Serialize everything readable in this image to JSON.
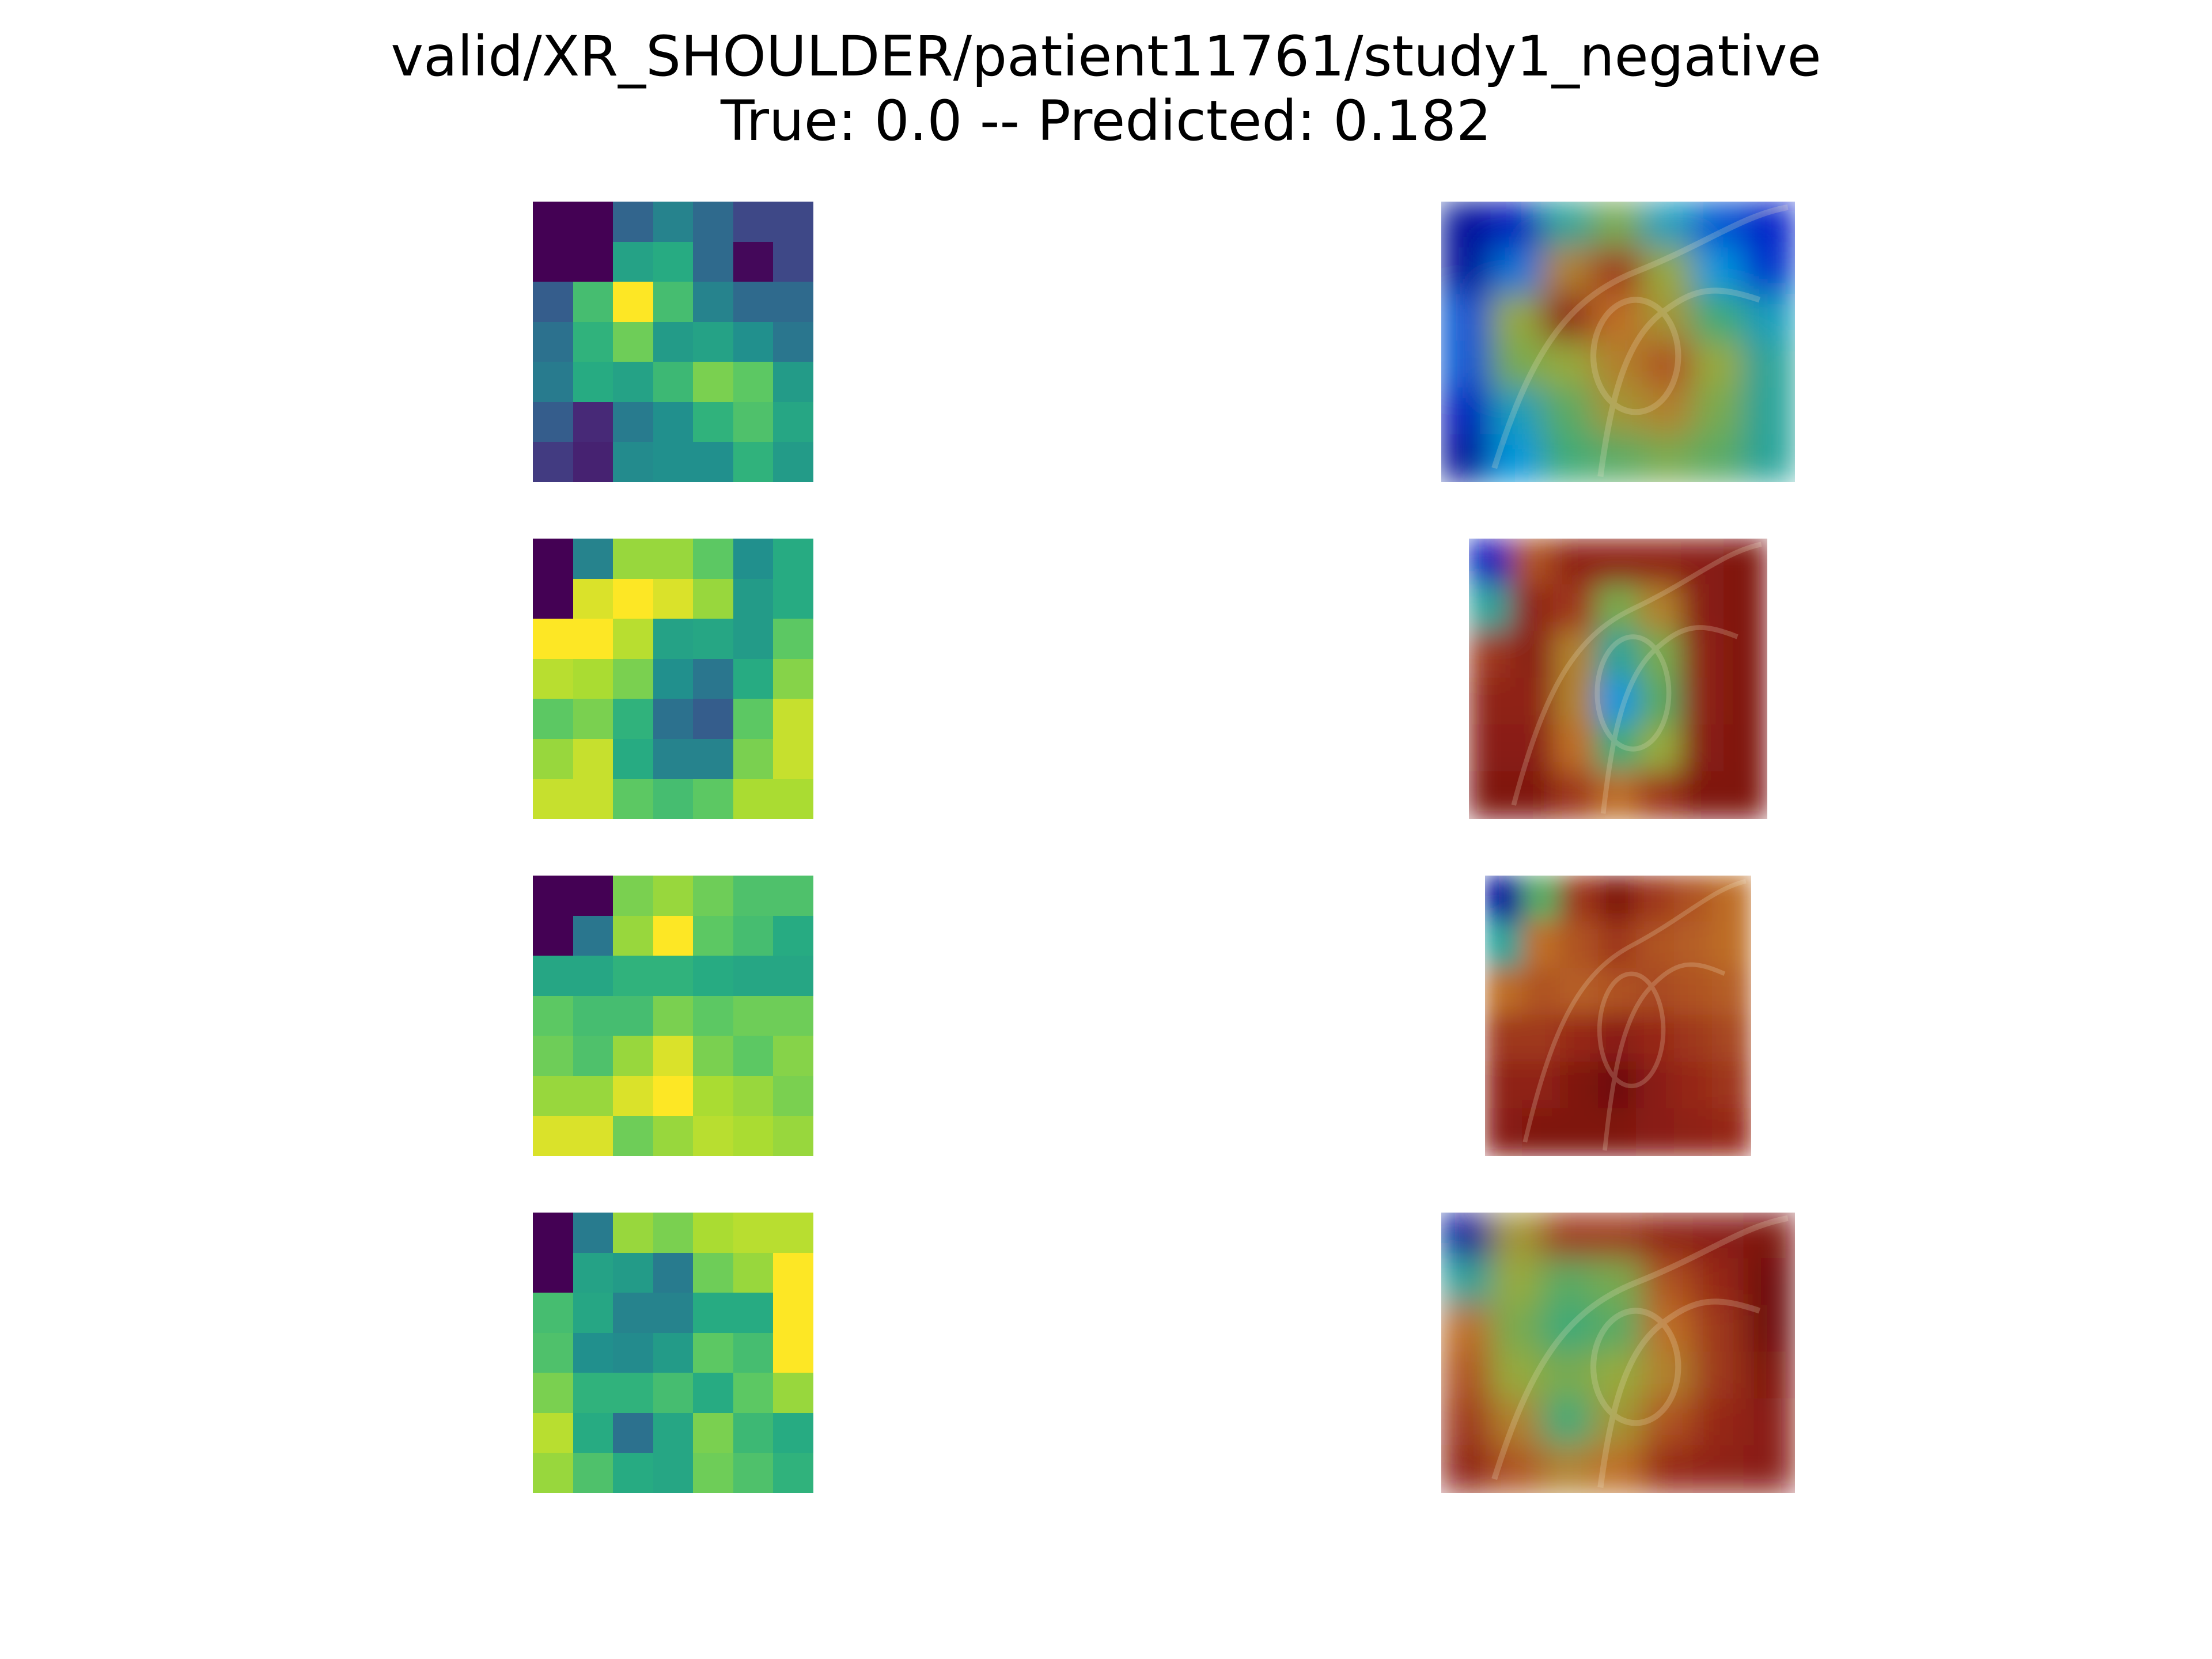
{
  "title": {
    "line1": "valid/XR_SHOULDER/patient11761/study1_negative",
    "line2": "True: 0.0 -- Predicted: 0.182"
  },
  "chart_data": {
    "type": "heatmap",
    "title": "valid/XR_SHOULDER/patient11761/study1_negative\nTrue: 0.0 -- Predicted: 0.182",
    "colormap": "viridis",
    "overlay_colormap": "jet",
    "true_label": 0.0,
    "predicted": 0.182,
    "axes_visible": false,
    "heatmaps": [
      {
        "rows": 7,
        "cols": 7,
        "values": [
          [
            0.0,
            0.0,
            0.33,
            0.45,
            0.35,
            0.22,
            0.22
          ],
          [
            0.0,
            0.0,
            0.58,
            0.62,
            0.35,
            0.02,
            0.22
          ],
          [
            0.3,
            0.7,
            1.0,
            0.7,
            0.45,
            0.35,
            0.35
          ],
          [
            0.38,
            0.65,
            0.78,
            0.55,
            0.58,
            0.5,
            0.4
          ],
          [
            0.42,
            0.62,
            0.58,
            0.68,
            0.8,
            0.75,
            0.55
          ],
          [
            0.3,
            0.12,
            0.42,
            0.5,
            0.65,
            0.72,
            0.6
          ],
          [
            0.18,
            0.1,
            0.48,
            0.5,
            0.5,
            0.65,
            0.55
          ]
        ]
      },
      {
        "rows": 7,
        "cols": 7,
        "values": [
          [
            0.0,
            0.45,
            0.85,
            0.85,
            0.75,
            0.5,
            0.62
          ],
          [
            0.0,
            0.95,
            1.0,
            0.95,
            0.85,
            0.55,
            0.62
          ],
          [
            1.0,
            1.0,
            0.9,
            0.58,
            0.6,
            0.55,
            0.75
          ],
          [
            0.9,
            0.88,
            0.8,
            0.5,
            0.4,
            0.62,
            0.82
          ],
          [
            0.75,
            0.8,
            0.65,
            0.38,
            0.3,
            0.75,
            0.92
          ],
          [
            0.85,
            0.92,
            0.62,
            0.45,
            0.45,
            0.8,
            0.92
          ],
          [
            0.92,
            0.92,
            0.75,
            0.7,
            0.75,
            0.88,
            0.88
          ]
        ]
      },
      {
        "rows": 7,
        "cols": 7,
        "values": [
          [
            0.0,
            0.0,
            0.8,
            0.85,
            0.78,
            0.72,
            0.72
          ],
          [
            0.0,
            0.4,
            0.85,
            1.0,
            0.75,
            0.7,
            0.62
          ],
          [
            0.6,
            0.6,
            0.65,
            0.65,
            0.62,
            0.6,
            0.6
          ],
          [
            0.75,
            0.7,
            0.7,
            0.8,
            0.75,
            0.78,
            0.78
          ],
          [
            0.78,
            0.72,
            0.85,
            0.95,
            0.8,
            0.75,
            0.82
          ],
          [
            0.85,
            0.85,
            0.95,
            1.0,
            0.88,
            0.85,
            0.8
          ],
          [
            0.95,
            0.95,
            0.78,
            0.85,
            0.9,
            0.88,
            0.85
          ]
        ]
      },
      {
        "rows": 7,
        "cols": 7,
        "values": [
          [
            0.0,
            0.42,
            0.85,
            0.8,
            0.88,
            0.9,
            0.9
          ],
          [
            0.0,
            0.58,
            0.55,
            0.42,
            0.78,
            0.85,
            1.0
          ],
          [
            0.7,
            0.6,
            0.45,
            0.45,
            0.62,
            0.62,
            1.0
          ],
          [
            0.72,
            0.5,
            0.48,
            0.55,
            0.75,
            0.7,
            1.0
          ],
          [
            0.8,
            0.65,
            0.65,
            0.7,
            0.62,
            0.75,
            0.85
          ],
          [
            0.9,
            0.62,
            0.38,
            0.6,
            0.8,
            0.68,
            0.62
          ],
          [
            0.85,
            0.72,
            0.62,
            0.6,
            0.78,
            0.72,
            0.65
          ]
        ]
      }
    ],
    "overlays": [
      {
        "intensity": [
          [
            0.05,
            0.1,
            0.4,
            0.55,
            0.35,
            0.2,
            0.12
          ],
          [
            0.05,
            0.25,
            0.7,
            0.85,
            0.6,
            0.3,
            0.15
          ],
          [
            0.2,
            0.6,
            0.9,
            0.75,
            0.65,
            0.45,
            0.35
          ],
          [
            0.2,
            0.55,
            0.6,
            0.7,
            0.8,
            0.6,
            0.4
          ],
          [
            0.1,
            0.35,
            0.5,
            0.65,
            0.7,
            0.55,
            0.4
          ],
          [
            0.05,
            0.3,
            0.45,
            0.5,
            0.55,
            0.5,
            0.4
          ]
        ]
      },
      {
        "intensity": [
          [
            0.1,
            0.8,
            0.9,
            0.9,
            0.9,
            0.92,
            0.95
          ],
          [
            0.4,
            0.9,
            0.85,
            0.55,
            0.7,
            0.92,
            0.95
          ],
          [
            0.85,
            0.92,
            0.7,
            0.4,
            0.55,
            0.9,
            0.95
          ],
          [
            0.9,
            0.9,
            0.7,
            0.3,
            0.5,
            0.9,
            0.95
          ],
          [
            0.92,
            0.92,
            0.75,
            0.45,
            0.6,
            0.92,
            0.95
          ],
          [
            0.95,
            0.95,
            0.85,
            0.75,
            0.85,
            0.95,
            0.95
          ]
        ]
      },
      {
        "intensity": [
          [
            0.05,
            0.5,
            0.85,
            0.95,
            0.85,
            0.8,
            0.75
          ],
          [
            0.4,
            0.75,
            0.8,
            0.85,
            0.8,
            0.78,
            0.75
          ],
          [
            0.75,
            0.8,
            0.78,
            0.8,
            0.82,
            0.8,
            0.78
          ],
          [
            0.85,
            0.85,
            0.88,
            0.92,
            0.88,
            0.85,
            0.82
          ],
          [
            0.9,
            0.9,
            0.95,
            1.0,
            0.92,
            0.88,
            0.85
          ],
          [
            0.92,
            0.95,
            0.95,
            0.95,
            0.92,
            0.9,
            0.88
          ]
        ]
      },
      {
        "intensity": [
          [
            0.05,
            0.65,
            0.85,
            0.85,
            0.9,
            0.92,
            0.95
          ],
          [
            0.4,
            0.6,
            0.5,
            0.55,
            0.8,
            0.88,
            1.0
          ],
          [
            0.75,
            0.55,
            0.45,
            0.5,
            0.75,
            0.85,
            1.0
          ],
          [
            0.8,
            0.6,
            0.55,
            0.6,
            0.7,
            0.85,
            0.95
          ],
          [
            0.85,
            0.7,
            0.45,
            0.65,
            0.8,
            0.88,
            0.92
          ],
          [
            0.9,
            0.8,
            0.7,
            0.75,
            0.88,
            0.9,
            0.92
          ]
        ]
      }
    ]
  }
}
